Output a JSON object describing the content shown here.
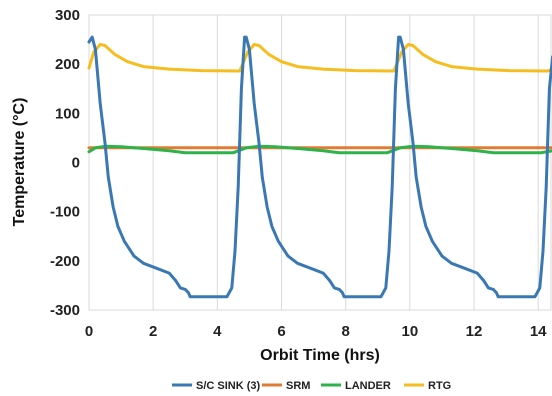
{
  "chart_data": {
    "type": "line",
    "xlabel": "Orbit Time (hrs)",
    "ylabel": "Temperature (°C)",
    "xlim": [
      0,
      14.4
    ],
    "ylim": [
      -300,
      300
    ],
    "x_ticks": [
      "0",
      "2",
      "4",
      "6",
      "8",
      "10",
      "12",
      "14"
    ],
    "y_ticks": [
      "-300",
      "-200",
      "-100",
      "0",
      "100",
      "200",
      "300"
    ],
    "grid": "vertical",
    "legend_position": "bottom",
    "series": [
      {
        "name": "S/C SINK (3)",
        "color": "#3a78b4",
        "points": [
          [
            0,
            245
          ],
          [
            0.1,
            255
          ],
          [
            0.2,
            230
          ],
          [
            0.35,
            120
          ],
          [
            0.5,
            40
          ],
          [
            0.6,
            -30
          ],
          [
            0.75,
            -90
          ],
          [
            0.9,
            -130
          ],
          [
            1.1,
            -160
          ],
          [
            1.4,
            -190
          ],
          [
            1.7,
            -205
          ],
          [
            2.1,
            -215
          ],
          [
            2.5,
            -225
          ],
          [
            2.7,
            -240
          ],
          [
            2.85,
            -255
          ],
          [
            3.0,
            -258
          ],
          [
            3.1,
            -265
          ],
          [
            3.15,
            -273
          ],
          [
            4.3,
            -273
          ],
          [
            4.45,
            -255
          ],
          [
            4.55,
            -180
          ],
          [
            4.65,
            -50
          ],
          [
            4.75,
            150
          ],
          [
            4.85,
            255
          ],
          [
            4.9,
            255
          ],
          [
            5.0,
            230
          ],
          [
            5.15,
            120
          ],
          [
            5.3,
            40
          ],
          [
            5.4,
            -30
          ],
          [
            5.55,
            -90
          ],
          [
            5.7,
            -130
          ],
          [
            5.9,
            -160
          ],
          [
            6.2,
            -190
          ],
          [
            6.5,
            -205
          ],
          [
            6.9,
            -215
          ],
          [
            7.3,
            -225
          ],
          [
            7.5,
            -240
          ],
          [
            7.65,
            -255
          ],
          [
            7.8,
            -258
          ],
          [
            7.9,
            -265
          ],
          [
            7.95,
            -273
          ],
          [
            9.1,
            -273
          ],
          [
            9.25,
            -255
          ],
          [
            9.35,
            -180
          ],
          [
            9.45,
            -50
          ],
          [
            9.55,
            150
          ],
          [
            9.65,
            255
          ],
          [
            9.7,
            255
          ],
          [
            9.8,
            230
          ],
          [
            9.95,
            120
          ],
          [
            10.1,
            40
          ],
          [
            10.2,
            -30
          ],
          [
            10.35,
            -90
          ],
          [
            10.5,
            -130
          ],
          [
            10.7,
            -160
          ],
          [
            11.0,
            -190
          ],
          [
            11.3,
            -205
          ],
          [
            11.7,
            -215
          ],
          [
            12.1,
            -225
          ],
          [
            12.3,
            -240
          ],
          [
            12.45,
            -255
          ],
          [
            12.6,
            -258
          ],
          [
            12.7,
            -265
          ],
          [
            12.75,
            -273
          ],
          [
            13.9,
            -273
          ],
          [
            14.05,
            -255
          ],
          [
            14.15,
            -180
          ],
          [
            14.25,
            -50
          ],
          [
            14.35,
            150
          ],
          [
            14.45,
            215
          ]
        ]
      },
      {
        "name": "SRM",
        "color": "#e07b35",
        "points": [
          [
            0,
            30
          ],
          [
            14.45,
            30
          ]
        ]
      },
      {
        "name": "LANDER",
        "color": "#2db34a",
        "points": [
          [
            0,
            22
          ],
          [
            0.2,
            30
          ],
          [
            0.5,
            33
          ],
          [
            1,
            32
          ],
          [
            1.8,
            28
          ],
          [
            2.5,
            24
          ],
          [
            3.0,
            20
          ],
          [
            4.5,
            20
          ],
          [
            4.9,
            30
          ],
          [
            5.3,
            33
          ],
          [
            5.8,
            32
          ],
          [
            6.6,
            28
          ],
          [
            7.3,
            24
          ],
          [
            7.8,
            20
          ],
          [
            9.3,
            20
          ],
          [
            9.7,
            30
          ],
          [
            10.1,
            33
          ],
          [
            10.6,
            32
          ],
          [
            11.4,
            28
          ],
          [
            12.1,
            24
          ],
          [
            12.6,
            20
          ],
          [
            14.1,
            20
          ],
          [
            14.45,
            24
          ]
        ]
      },
      {
        "name": "RTG",
        "color": "#f5bd1f",
        "points": [
          [
            0,
            192
          ],
          [
            0.15,
            225
          ],
          [
            0.35,
            240
          ],
          [
            0.5,
            238
          ],
          [
            0.8,
            220
          ],
          [
            1.2,
            205
          ],
          [
            1.7,
            195
          ],
          [
            2.5,
            190
          ],
          [
            3.5,
            187
          ],
          [
            4.7,
            186
          ],
          [
            4.95,
            225
          ],
          [
            5.15,
            240
          ],
          [
            5.3,
            238
          ],
          [
            5.6,
            220
          ],
          [
            6.0,
            205
          ],
          [
            6.5,
            195
          ],
          [
            7.3,
            190
          ],
          [
            8.3,
            187
          ],
          [
            9.5,
            186
          ],
          [
            9.75,
            225
          ],
          [
            9.95,
            240
          ],
          [
            10.1,
            238
          ],
          [
            10.4,
            220
          ],
          [
            10.8,
            205
          ],
          [
            11.3,
            195
          ],
          [
            12.1,
            190
          ],
          [
            13.1,
            187
          ],
          [
            14.3,
            186
          ],
          [
            14.45,
            190
          ]
        ]
      }
    ]
  }
}
